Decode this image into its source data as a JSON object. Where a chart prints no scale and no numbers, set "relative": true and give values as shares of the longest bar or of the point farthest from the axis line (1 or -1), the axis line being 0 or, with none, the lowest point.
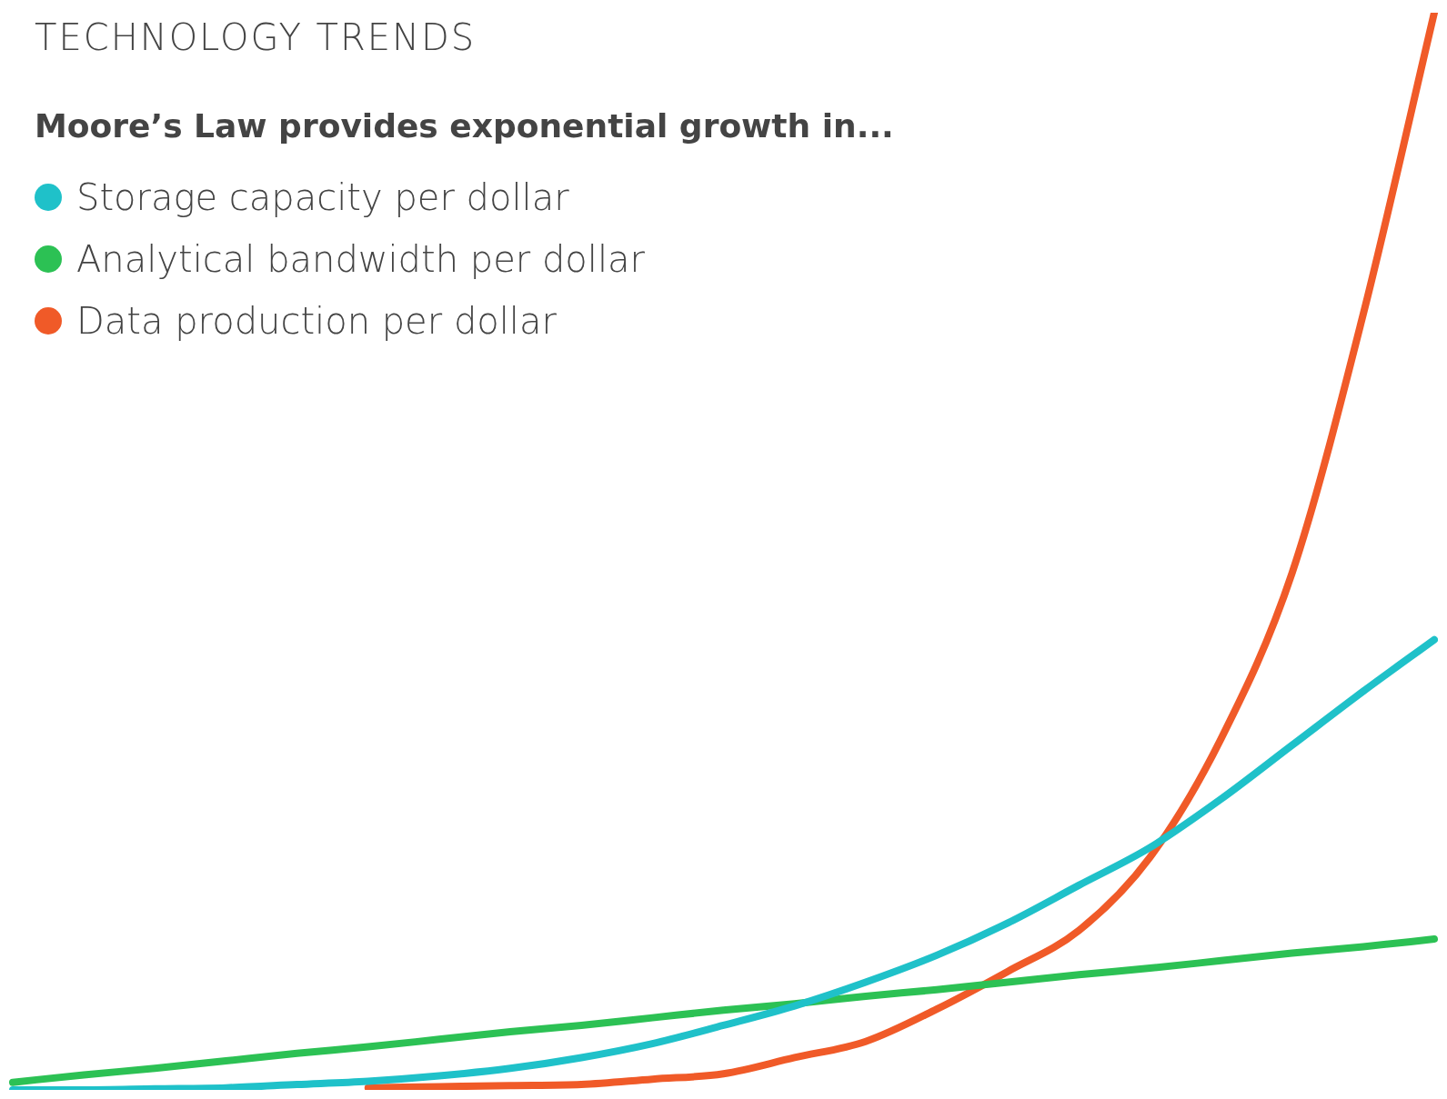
{
  "chart_data": {
    "type": "line",
    "title": "TECHNOLOGY TRENDS",
    "subtitle": "Moore’s Law provides exponential growth in...",
    "relative": true,
    "legend": "top left",
    "categories": [
      null,
      null,
      null,
      null,
      null,
      null,
      null,
      null,
      null,
      null,
      null,
      null,
      null,
      null,
      null,
      null,
      null,
      null,
      null,
      null,
      null
    ],
    "series": [
      {
        "name": "Storage capacity per dollar",
        "color": "#1fc1c9",
        "values": [
          0,
          0,
          0.001,
          0.002,
          0.005,
          0.008,
          0.013,
          0.02,
          0.03,
          0.043,
          0.06,
          0.078,
          0.1,
          0.125,
          0.155,
          0.19,
          0.225,
          0.27,
          0.32,
          0.37,
          0.418
        ]
      },
      {
        "name": "Analytical bandwidth per dollar",
        "color": "#2cc154",
        "values": [
          0.007,
          0.014,
          0.02,
          0.027,
          0.034,
          0.04,
          0.047,
          0.054,
          0.06,
          0.067,
          0.074,
          0.08,
          0.087,
          0.093,
          0.1,
          0.107,
          0.113,
          0.12,
          0.127,
          0.133,
          0.14
        ]
      },
      {
        "name": "Data production per dollar",
        "color": "#f05a28",
        "values": [
          null,
          null,
          null,
          null,
          null,
          0.002,
          0.003,
          0.004,
          0.005,
          0.01,
          0.015,
          0.03,
          0.045,
          0.075,
          0.11,
          0.148,
          0.216,
          0.326,
          0.48,
          0.72,
          1
        ]
      }
    ]
  }
}
